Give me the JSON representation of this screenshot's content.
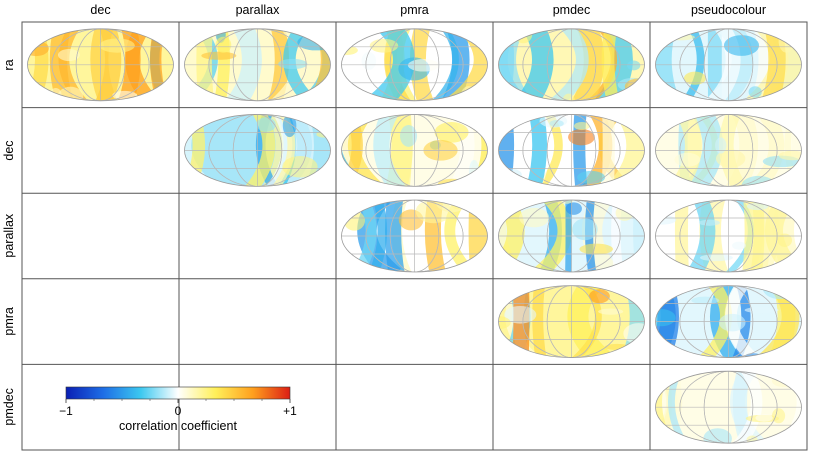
{
  "chart_data": {
    "type": "heatmap",
    "description_kind": "correlation matrix of all-sky maps",
    "columns": [
      "dec",
      "parallax",
      "pmra",
      "pmdec",
      "pseudocolour"
    ],
    "rows": [
      "ra",
      "dec",
      "parallax",
      "pmra",
      "pmdec"
    ],
    "cells": [
      {
        "row": "ra",
        "col": "dec",
        "dominant": "warm-yellow-orange",
        "mean_corr": 0.2
      },
      {
        "row": "ra",
        "col": "parallax",
        "dominant": "yellow",
        "mean_corr": 0.1
      },
      {
        "row": "ra",
        "col": "pmra",
        "dominant": "cyan-yellow mix",
        "mean_corr": 0.0
      },
      {
        "row": "ra",
        "col": "pmdec",
        "dominant": "orange-yellow",
        "mean_corr": 0.15
      },
      {
        "row": "ra",
        "col": "pseudocolour",
        "dominant": "light cyan",
        "mean_corr": -0.05
      },
      {
        "row": "dec",
        "col": "parallax",
        "dominant": "cyan",
        "mean_corr": -0.15
      },
      {
        "row": "dec",
        "col": "pmra",
        "dominant": "yellow-cyan",
        "mean_corr": 0.05
      },
      {
        "row": "dec",
        "col": "pmdec",
        "dominant": "strong blue/orange bands",
        "mean_corr": 0.0
      },
      {
        "row": "dec",
        "col": "pseudocolour",
        "dominant": "pale yellow",
        "mean_corr": 0.05
      },
      {
        "row": "parallax",
        "col": "pmra",
        "dominant": "yellow/cyan split",
        "mean_corr": 0.0
      },
      {
        "row": "parallax",
        "col": "pmdec",
        "dominant": "cyan with orange bands",
        "mean_corr": -0.05
      },
      {
        "row": "parallax",
        "col": "pseudocolour",
        "dominant": "very pale",
        "mean_corr": 0.0
      },
      {
        "row": "pmra",
        "col": "pmdec",
        "dominant": "orange center",
        "mean_corr": 0.2
      },
      {
        "row": "pmra",
        "col": "pseudocolour",
        "dominant": "light cyan",
        "mean_corr": -0.05
      },
      {
        "row": "pmdec",
        "col": "pseudocolour",
        "dominant": "pale yellow",
        "mean_corr": 0.05
      }
    ],
    "colorbar": {
      "label": "correlation coefficient",
      "range": [
        -1,
        1
      ],
      "tick_labels": [
        "−1",
        "0",
        "+1"
      ],
      "colors": [
        "#0a1fb4",
        "#1e6ee6",
        "#3cc8f0",
        "#ffffff",
        "#fff05a",
        "#ffa01e",
        "#dc1e14"
      ]
    }
  }
}
